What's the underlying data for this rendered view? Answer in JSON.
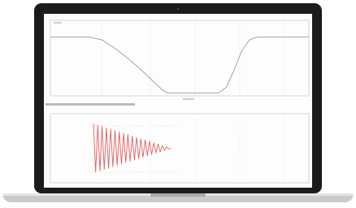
{
  "chart_data": [
    {
      "type": "line",
      "x": [
        0,
        15,
        20,
        25,
        30,
        35,
        40,
        44,
        46,
        65,
        68,
        71,
        74,
        77,
        80,
        100
      ],
      "series": [
        {
          "color": "#9a9a9a",
          "values": [
            1,
            1,
            0.95,
            0.8,
            0.62,
            0.42,
            0.2,
            0.03,
            0,
            0,
            0.1,
            0.4,
            0.75,
            0.95,
            1,
            1
          ]
        }
      ],
      "xlim": [
        0,
        100
      ],
      "ylim": [
        -0.05,
        1.3
      ]
    },
    {
      "type": "line",
      "x": [
        0,
        1,
        2,
        3,
        4,
        5,
        6,
        7,
        8,
        9,
        10,
        11,
        12,
        13,
        14,
        15,
        16,
        17,
        18,
        19,
        20,
        21,
        22,
        23,
        24,
        25,
        26,
        27,
        28,
        29,
        30,
        31,
        32,
        33,
        34,
        35,
        36
      ],
      "series": [
        {
          "color": "#e06060",
          "values": [
            1,
            -0.97,
            0.94,
            -0.92,
            0.89,
            -0.86,
            0.83,
            -0.81,
            0.78,
            -0.75,
            0.72,
            -0.69,
            0.67,
            -0.64,
            0.61,
            -0.58,
            0.56,
            -0.53,
            0.5,
            -0.47,
            0.44,
            -0.42,
            0.39,
            -0.36,
            0.33,
            -0.31,
            0.28,
            -0.25,
            0.22,
            -0.19,
            0.17,
            -0.14,
            0.11,
            -0.08,
            0.06,
            -0.03,
            0
          ]
        }
      ],
      "xlim": [
        -20,
        100
      ],
      "ylim": [
        -1.4,
        1.4
      ]
    }
  ]
}
